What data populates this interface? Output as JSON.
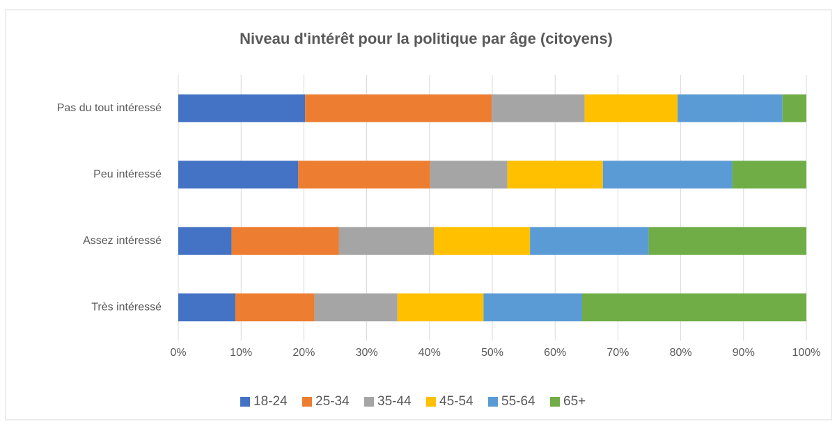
{
  "chart_data": {
    "type": "stacked_barh",
    "title": "Niveau d'intérêt pour la politique par âge (citoyens)",
    "categories": [
      "Pas du tout intéressé",
      "Peu intéressé",
      "Assez intéressé",
      "Très intéressé"
    ],
    "series": [
      {
        "name": "18-24",
        "color": "#4472c4",
        "values": [
          20.2,
          19.1,
          8.5,
          9.1
        ]
      },
      {
        "name": "25-34",
        "color": "#ed7d31",
        "values": [
          29.7,
          21.0,
          17.1,
          12.6
        ]
      },
      {
        "name": "35-44",
        "color": "#a5a5a5",
        "values": [
          14.8,
          12.3,
          15.1,
          13.2
        ]
      },
      {
        "name": "45-54",
        "color": "#ffc000",
        "values": [
          14.8,
          15.2,
          15.3,
          13.7
        ]
      },
      {
        "name": "55-64",
        "color": "#5b9bd5",
        "values": [
          16.7,
          20.6,
          18.9,
          15.7
        ]
      },
      {
        "name": "65+",
        "color": "#70ad47",
        "values": [
          3.8,
          11.8,
          25.1,
          35.7
        ]
      }
    ],
    "xlim": [
      0,
      100
    ],
    "xticks": [
      {
        "value": 0,
        "label": "0%"
      },
      {
        "value": 10,
        "label": "10%"
      },
      {
        "value": 20,
        "label": "20%"
      },
      {
        "value": 30,
        "label": "30%"
      },
      {
        "value": 40,
        "label": "40%"
      },
      {
        "value": 50,
        "label": "50%"
      },
      {
        "value": 60,
        "label": "60%"
      },
      {
        "value": 70,
        "label": "70%"
      },
      {
        "value": 80,
        "label": "80%"
      },
      {
        "value": 90,
        "label": "90%"
      },
      {
        "value": 100,
        "label": "100%"
      }
    ],
    "grid": true,
    "legend": "bottom"
  }
}
